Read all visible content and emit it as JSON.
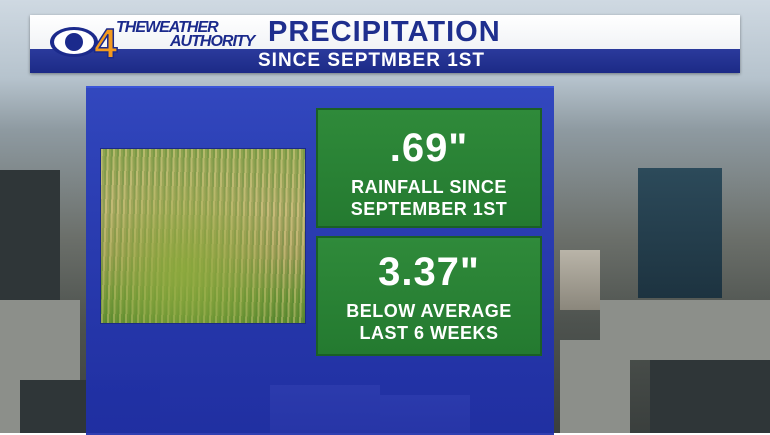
{
  "header": {
    "station_number": "4",
    "brand_line1": "THEWEATHER",
    "brand_line2": "AUTHORITY",
    "title": "PRECIPITATION",
    "subtitle": "SINCE SEPTMBER 1ST"
  },
  "stats": [
    {
      "value": ".69\"",
      "label_line1": "RAINFALL SINCE",
      "label_line2": "SEPTEMBER 1ST"
    },
    {
      "value": "3.37\"",
      "label_line1": "BELOW AVERAGE",
      "label_line2": "LAST 6 WEEKS"
    }
  ],
  "colors": {
    "header_blue": "#1f2f8e",
    "panel_blue": "#283ebe",
    "stat_green": "#2f8a3a",
    "accent_orange": "#f39a1f"
  },
  "icons": {
    "logo": "cbs-eye-logo",
    "photo": "dry-grass-photo"
  }
}
